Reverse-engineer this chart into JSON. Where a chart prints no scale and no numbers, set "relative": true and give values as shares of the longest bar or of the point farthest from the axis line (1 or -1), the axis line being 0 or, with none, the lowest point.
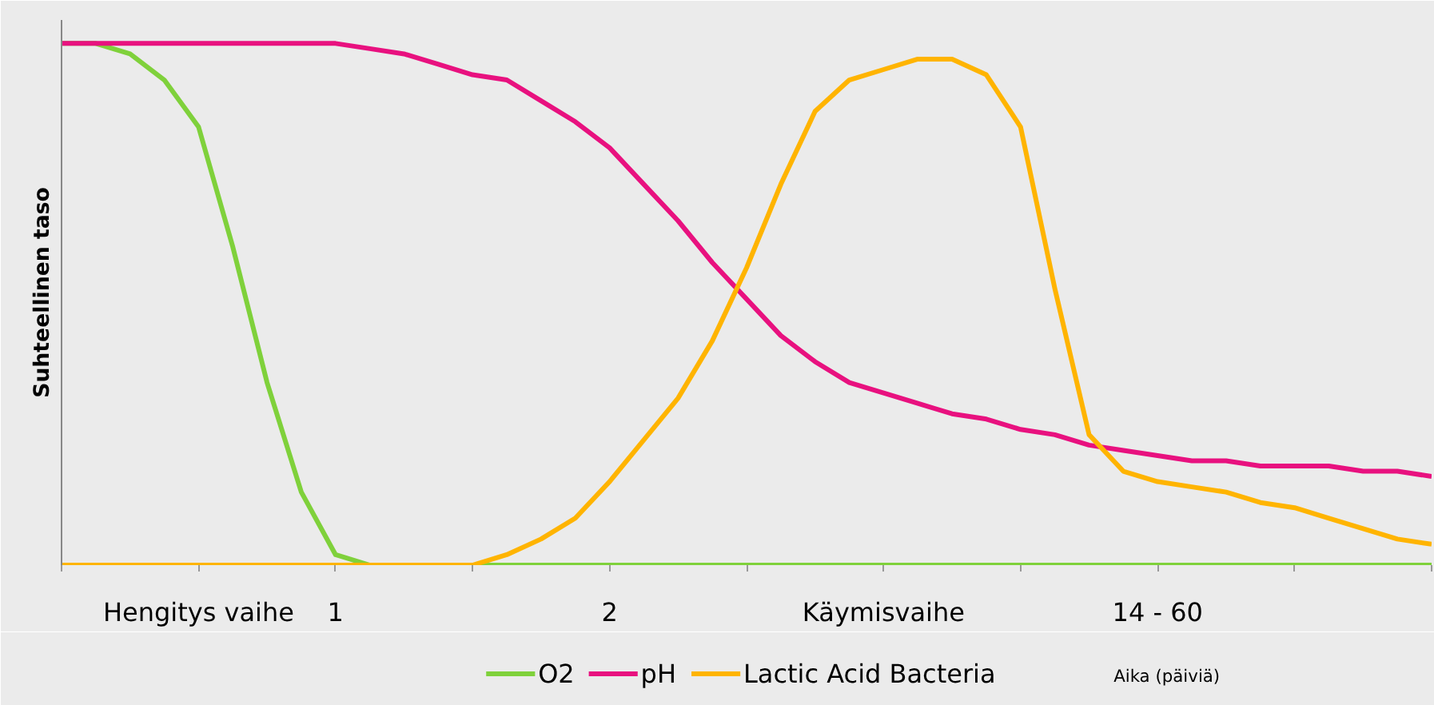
{
  "chart_data": {
    "type": "line",
    "relative": true,
    "ylabel": "Suhteellinen taso",
    "xlabel": "Aika (päiviä)",
    "categories": [
      null,
      null,
      null,
      null,
      "Hengitys vaihe",
      null,
      null,
      null,
      "1",
      null,
      null,
      null,
      null,
      null,
      null,
      null,
      "2",
      null,
      null,
      null,
      null,
      null,
      null,
      null,
      "Käymisvaihe",
      null,
      null,
      null,
      null,
      null,
      null,
      null,
      "14 - 60",
      null,
      null,
      null,
      null,
      null,
      null,
      null,
      null
    ],
    "legend": "bottom",
    "line_style": "solid",
    "series": [
      {
        "name": "O2",
        "color": "#7fd13b",
        "values": [
          1,
          1,
          0.98,
          0.93,
          0.84,
          0.61,
          0.35,
          0.14,
          0.02,
          0,
          0,
          0,
          0,
          0,
          0,
          0,
          0,
          0,
          0,
          0,
          0,
          0,
          0,
          0,
          0,
          0,
          0,
          0,
          0,
          0,
          0,
          0,
          0,
          0,
          0,
          0,
          0,
          0,
          0,
          0,
          0
        ]
      },
      {
        "name": "pH",
        "color": "#e8117f",
        "values": [
          1,
          1,
          1,
          1,
          1,
          1,
          1,
          1,
          1,
          0.99,
          0.98,
          0.96,
          0.94,
          0.93,
          0.89,
          0.85,
          0.8,
          0.73,
          0.66,
          0.58,
          0.51,
          0.44,
          0.39,
          0.35,
          0.33,
          0.31,
          0.29,
          0.28,
          0.26,
          0.25,
          0.23,
          0.22,
          0.21,
          0.2,
          0.2,
          0.19,
          0.19,
          0.19,
          0.18,
          0.18,
          0.17
        ]
      },
      {
        "name": "Lactic Acid Bacteria",
        "color": "#ffb400",
        "values": [
          0,
          0,
          0,
          0,
          0,
          0,
          0,
          0,
          0,
          0,
          0,
          0,
          0,
          0.02,
          0.05,
          0.09,
          0.16,
          0.24,
          0.32,
          0.43,
          0.57,
          0.73,
          0.87,
          0.93,
          0.95,
          0.97,
          0.97,
          0.94,
          0.84,
          0.53,
          0.25,
          0.18,
          0.16,
          0.15,
          0.14,
          0.12,
          0.11,
          0.09,
          0.07,
          0.05,
          0.04
        ]
      }
    ]
  }
}
